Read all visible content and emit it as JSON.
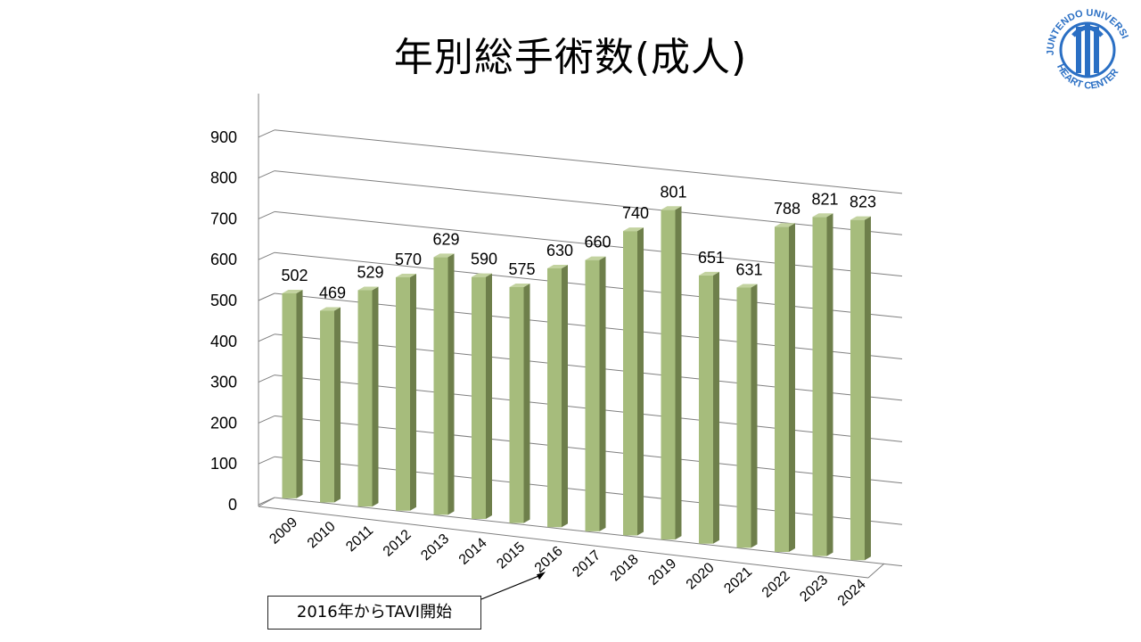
{
  "slide": {
    "title": "年別総手術数(成人)"
  },
  "annotation": {
    "text": "2016年からTAVI開始",
    "target_category": "2016"
  },
  "logo": {
    "top_text": "JUNTENDO UNIVERSITY",
    "bottom_text": "HEART CENTER",
    "color": "#2a6fc4"
  },
  "chart_data": {
    "type": "bar",
    "title": "年別総手術数(成人)",
    "xlabel": "",
    "ylabel": "",
    "categories": [
      "2009",
      "2010",
      "2011",
      "2012",
      "2013",
      "2014",
      "2015",
      "2016",
      "2017",
      "2018",
      "2019",
      "2020",
      "2021",
      "2022",
      "2023",
      "2024"
    ],
    "values": [
      502,
      469,
      529,
      570,
      629,
      590,
      575,
      630,
      660,
      740,
      801,
      651,
      631,
      788,
      821,
      823
    ],
    "ylim": [
      0,
      900
    ],
    "yticks": [
      "0",
      "100",
      "200",
      "300",
      "400",
      "500",
      "600",
      "700",
      "800",
      "900"
    ],
    "grid": true,
    "legend": "none",
    "style": "3d-column",
    "colors": {
      "bar_front": "#a6bc7c",
      "bar_side": "#6e7f4b",
      "bar_top": "#c3d3a0",
      "grid": "#7f7f7f"
    }
  }
}
